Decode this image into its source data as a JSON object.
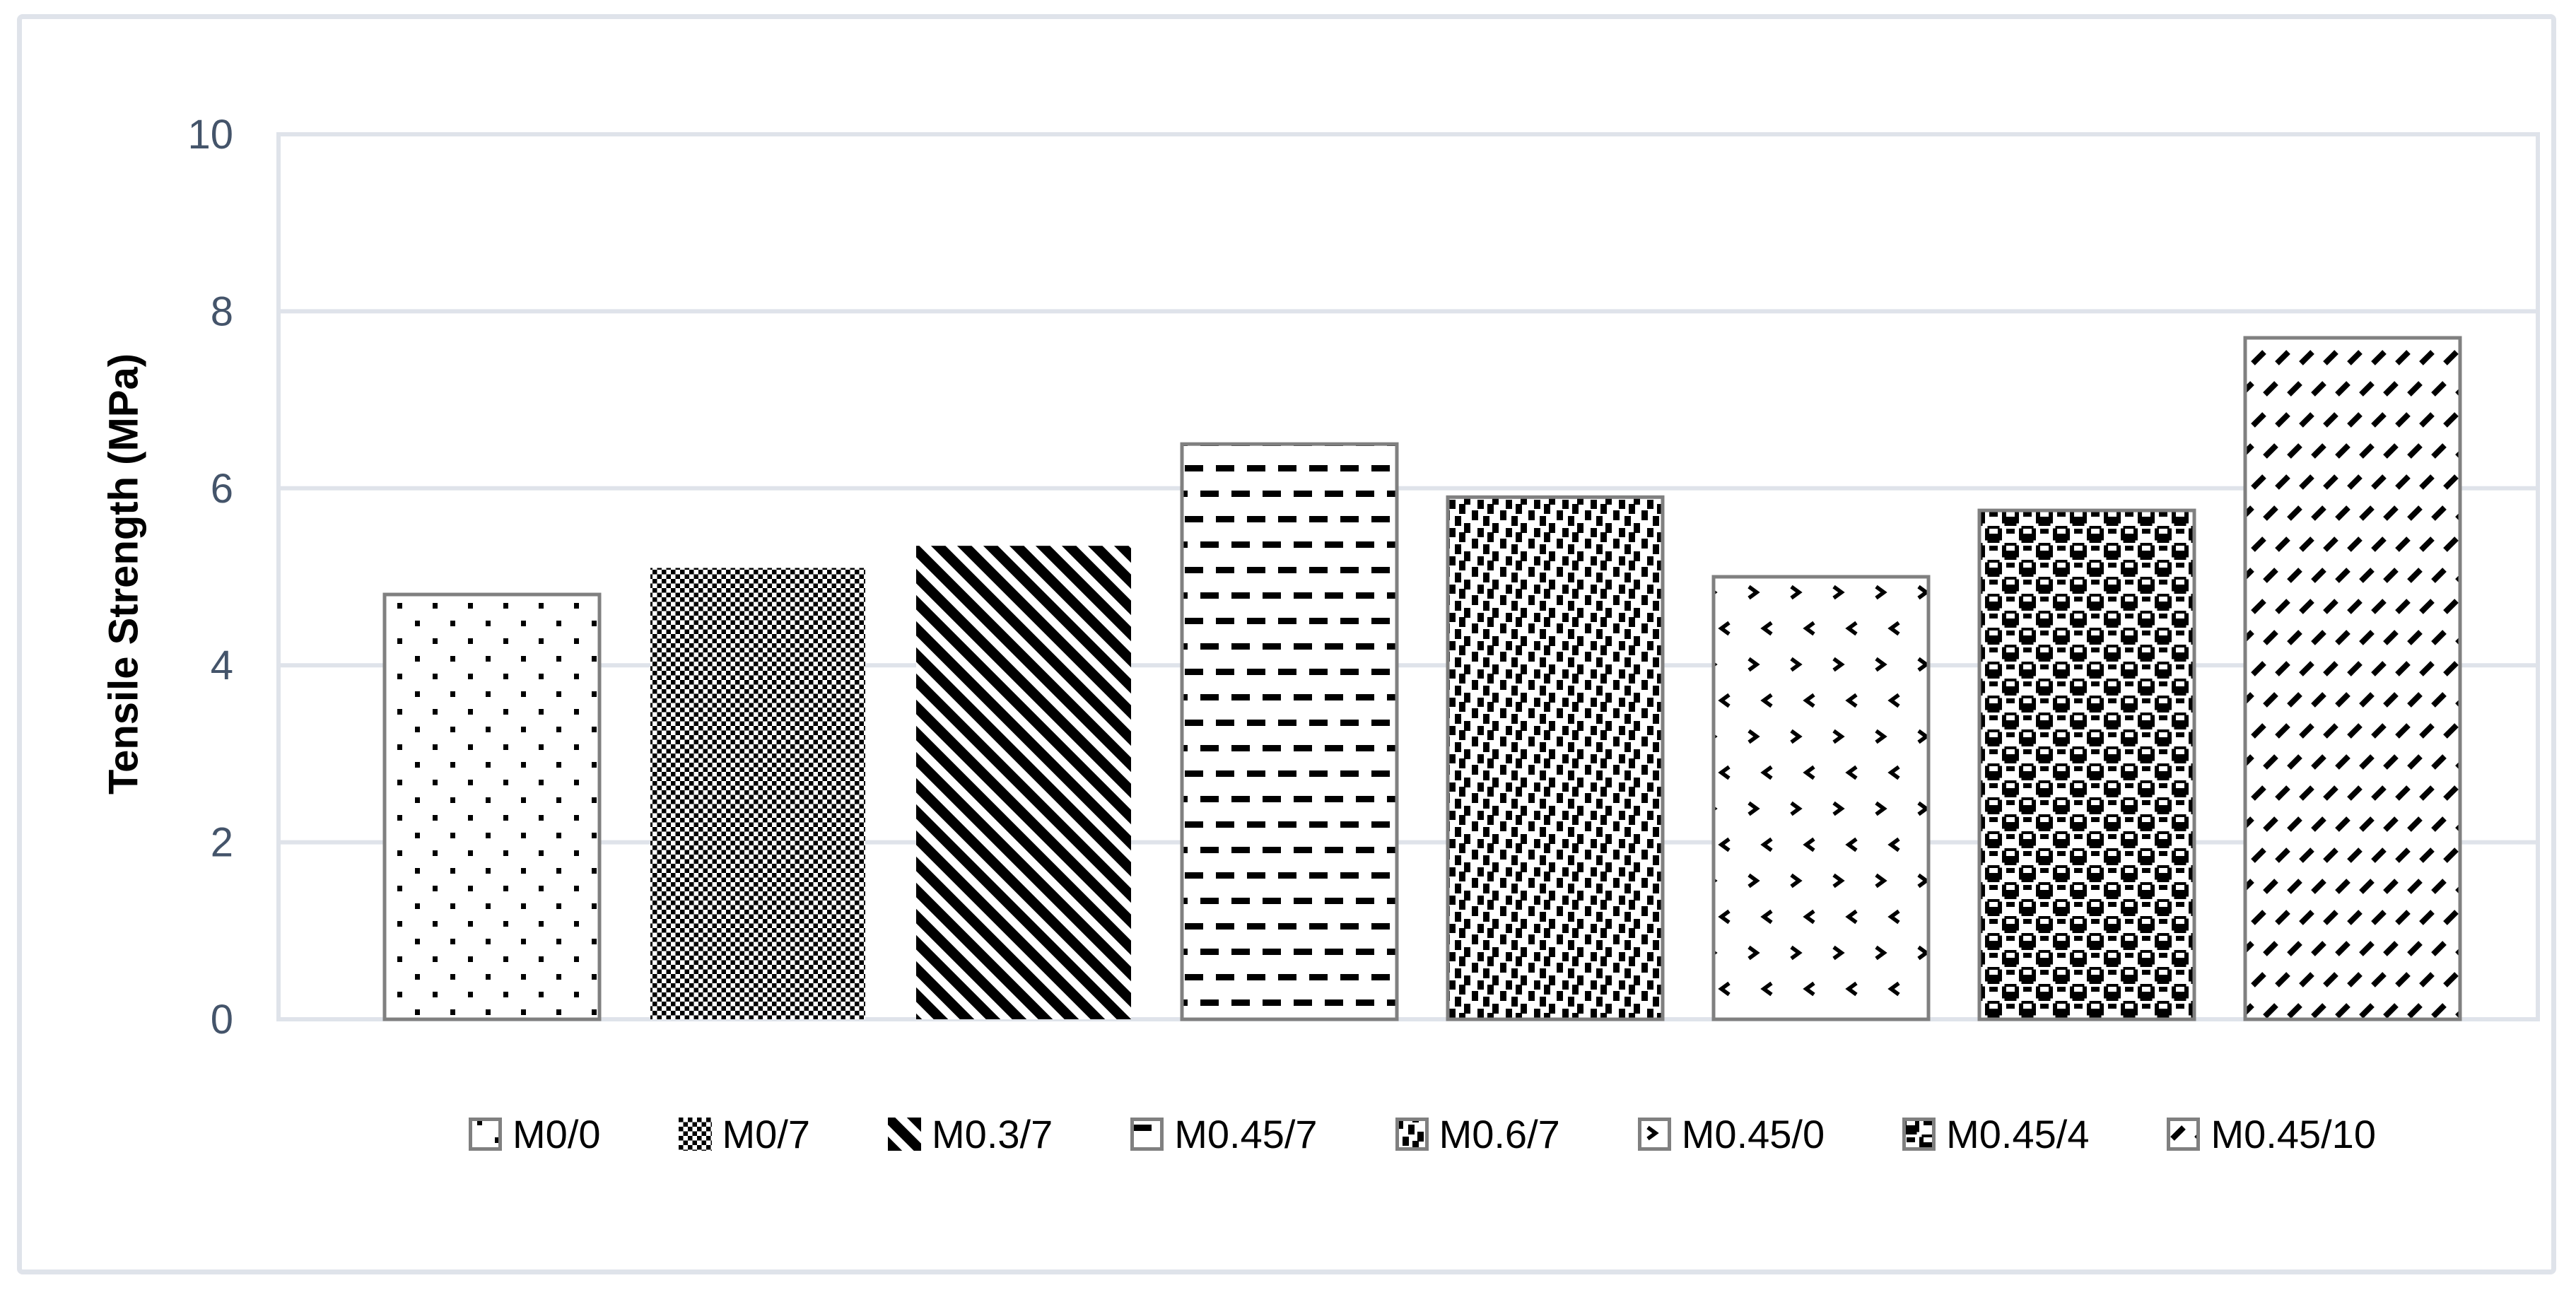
{
  "chart_data": {
    "type": "bar",
    "categories": [
      "M0/0",
      "M0/7",
      "M0.3/7",
      "M0.45/7",
      "M0.6/7",
      "M0.45/0",
      "M0.45/4",
      "M0.45/10"
    ],
    "values": [
      4.8,
      5.1,
      5.35,
      6.5,
      5.9,
      5.0,
      5.75,
      7.7
    ],
    "title": "",
    "xlabel": "",
    "ylabel": "Tensile Strength (MPa)",
    "ylim": [
      0,
      10
    ],
    "yticks": [
      0,
      2,
      4,
      6,
      8,
      10
    ],
    "grid": true,
    "legend_position": "bottom",
    "bar_patterns": [
      "dots-5pct",
      "small-checker",
      "dark-downward-diagonal",
      "horizontal-dashes",
      "small-confetti",
      "divot",
      "large-checker",
      "dashed-upward-diagonal"
    ],
    "bar_has_border": [
      true,
      false,
      false,
      true,
      true,
      true,
      true,
      true
    ],
    "colors": {
      "pattern_foreground": "#000000",
      "pattern_background": "#ffffff",
      "bar_border": "#808080",
      "gridline": "#dfe3ea",
      "tick_label": "#44546A",
      "axis_title": "#000000",
      "legend_text": "#000000",
      "figure_border": "#dfe3ea"
    }
  }
}
